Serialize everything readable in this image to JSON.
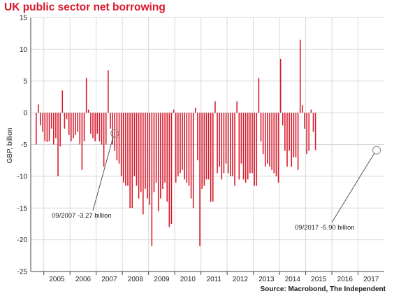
{
  "header": {
    "title": "UK public sector net borrowing",
    "source": "Source: Macrobond, The Independent"
  },
  "colors": {
    "bar": "#d7182a",
    "grid": "#d9d9d9",
    "axis": "#444444",
    "title": "#d7182a"
  },
  "chart_data": {
    "type": "bar",
    "title": "UK public sector net borrowing",
    "ylabel": "GBP, billion",
    "xlabel": "",
    "ylim": [
      -25,
      15
    ],
    "yticks": [
      15,
      10,
      5,
      0,
      -5,
      -10,
      -15,
      -20,
      -25
    ],
    "xlim": [
      "2004-07",
      "2017-12"
    ],
    "grid": true,
    "year_labels": [
      "2005",
      "2006",
      "2007",
      "2008",
      "2009",
      "2010",
      "2011",
      "2012",
      "2013",
      "2014",
      "2015",
      "2016",
      "2017"
    ],
    "start_month": "2004-09",
    "series": [
      {
        "values": [
          -5.0,
          1.3,
          -2.0,
          -3.0,
          -4.5,
          -4.6,
          -4.5,
          -2.5,
          -5.0,
          -4.0,
          -10.0,
          -5.3,
          3.5,
          -2.5,
          -1.0,
          -3.5,
          -4.5,
          -4.0,
          -3.5,
          -3.0,
          -5.0,
          -9.0,
          -4.5,
          5.5,
          0.5,
          -3.3,
          -4.0,
          -4.5,
          -3.3,
          -4.5,
          -5.0,
          -8.5,
          -5.0,
          6.7,
          -2.5,
          -5.0,
          -6.0,
          -7.5,
          -8.0,
          -10.0,
          -11.0,
          -11.5,
          -11.5,
          -15.0,
          -15.0,
          -10.0,
          -11.5,
          -13.5,
          -12.5,
          -16.0,
          -12.0,
          -13.5,
          -14.5,
          -21.0,
          -12.5,
          -11.0,
          -15.5,
          -13.5,
          -12.0,
          -11.0,
          -14.0,
          -18.0,
          -17.5,
          0.5,
          -11.0,
          -10.0,
          -9.5,
          -9.0,
          -10.5,
          -11.0,
          -11.5,
          -13.5,
          -15.0,
          0.8,
          -7.5,
          -21.0,
          -12.0,
          -11.5,
          -10.5,
          -10.5,
          -14.0,
          -14.0,
          1.8,
          -9.5,
          -8.5,
          -10.5,
          -9.5,
          -8.0,
          -9.5,
          -10.0,
          -10.0,
          -11.5,
          1.8,
          -10.5,
          -8.0,
          -10.5,
          -11.0,
          -10.5,
          -9.5,
          -9.5,
          -11.5,
          -11.5,
          5.5,
          -4.5,
          -6.5,
          -8.5,
          -8.0,
          -8.5,
          -9.0,
          -9.5,
          -10.0,
          -11.0,
          8.5,
          -2.0,
          -6.0,
          -8.5,
          -6.0,
          -8.5,
          -7.0,
          -7.0,
          -9.0,
          11.5,
          1.2,
          -2.5,
          -6.5,
          -6.0,
          0.5,
          -3.0,
          -5.9
        ]
      }
    ],
    "annotations": [
      {
        "text": "09/2007 -3.27 billion",
        "x": "2007-09",
        "y": -3.27
      },
      {
        "text": "09/2017 -5.90 billion",
        "x": "2017-09",
        "y": -5.9
      }
    ]
  }
}
